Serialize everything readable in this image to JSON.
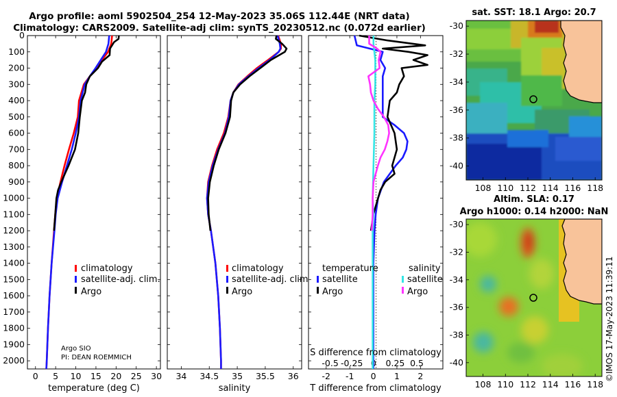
{
  "title_line1": "Argo profile: aoml 5902504_254 12-May-2023 35.06S 112.44E (NRT data)",
  "title_line2": "Climatology: CARS2009. Satellite-adj clim: synTS_20230512.nc (0.072d earlier)",
  "colors": {
    "red": "#ff0000",
    "blue": "#1a1aff",
    "black": "#000000",
    "cyan": "#33e5e5",
    "magenta": "#ff33ff"
  },
  "credits": {
    "line1": "Argo SIO",
    "line2": "PI: DEAN ROEMMICH"
  },
  "stamp": "©IMOS 17-May-2023 11:39:11",
  "depth_ticks": [
    0,
    100,
    200,
    300,
    400,
    500,
    600,
    700,
    800,
    900,
    1000,
    1100,
    1200,
    1300,
    1400,
    1500,
    1600,
    1700,
    1800,
    1900,
    2000
  ],
  "chart_data": [
    {
      "id": "temperature",
      "type": "line",
      "xlabel": "temperature (deg C)",
      "xlim": [
        -2,
        31
      ],
      "ylim": [
        0,
        2050
      ],
      "xticks": [
        0,
        5,
        10,
        15,
        20,
        25,
        30
      ],
      "legend": [
        "climatology",
        "satellite-adj. clim.",
        "Argo"
      ],
      "series": [
        {
          "name": "climatology",
          "color": "red",
          "depth": [
            0,
            50,
            100,
            150,
            200,
            250,
            300,
            400,
            500,
            600,
            700,
            800,
            900,
            1000,
            1100,
            1200,
            1400,
            1600,
            1800,
            2000,
            2050
          ],
          "values": [
            19.0,
            18.8,
            18.0,
            16.5,
            15.0,
            13.5,
            12.0,
            10.8,
            10.5,
            9.5,
            8.3,
            7.2,
            6.2,
            5.3,
            4.9,
            4.6,
            4.0,
            3.5,
            3.1,
            2.8,
            2.7
          ]
        },
        {
          "name": "satellite-adj. clim.",
          "color": "blue",
          "depth": [
            0,
            50,
            100,
            150,
            200,
            250,
            300,
            400,
            500,
            600,
            700,
            800,
            900,
            1000,
            1100,
            1200,
            1400,
            1600,
            1800,
            2000,
            2050
          ],
          "values": [
            18.3,
            18.1,
            17.5,
            16.2,
            14.9,
            13.5,
            12.2,
            11.2,
            10.8,
            10.0,
            9.0,
            7.8,
            6.6,
            5.5,
            5.0,
            4.7,
            4.0,
            3.5,
            3.1,
            2.8,
            2.7
          ]
        },
        {
          "name": "Argo",
          "color": "black",
          "depth": [
            0,
            20,
            40,
            80,
            120,
            160,
            200,
            250,
            300,
            350,
            400,
            500,
            600,
            700,
            800,
            850,
            900,
            950,
            1000,
            1100,
            1200
          ],
          "values": [
            20.7,
            20.6,
            19.5,
            18.5,
            18.4,
            16.5,
            15.5,
            13.5,
            12.6,
            12.3,
            11.5,
            11.0,
            10.6,
            9.8,
            8.2,
            7.3,
            6.4,
            5.6,
            5.2,
            4.9,
            4.6
          ]
        }
      ]
    },
    {
      "id": "salinity",
      "type": "line",
      "xlabel": "salinity",
      "xlim": [
        33.75,
        36.15
      ],
      "ylim": [
        0,
        2050
      ],
      "xticks": [
        34,
        34.5,
        35,
        35.5,
        36
      ],
      "legend": [
        "climatology",
        "satellite-adj. clim.",
        "Argo"
      ],
      "series": [
        {
          "name": "climatology",
          "color": "red",
          "depth": [
            0,
            50,
            80,
            100,
            150,
            200,
            250,
            300,
            350,
            400,
            500,
            600,
            700,
            800,
            900,
            1000,
            1100,
            1200,
            1400,
            1600,
            1800,
            2000,
            2050
          ],
          "values": [
            35.73,
            35.78,
            35.78,
            35.74,
            35.55,
            35.35,
            35.18,
            35.02,
            34.93,
            34.88,
            34.84,
            34.76,
            34.64,
            34.55,
            34.48,
            34.46,
            34.48,
            34.53,
            34.61,
            34.66,
            34.69,
            34.71,
            34.71
          ]
        },
        {
          "name": "satellite-adj. clim.",
          "color": "blue",
          "depth": [
            0,
            50,
            80,
            100,
            150,
            200,
            250,
            300,
            350,
            400,
            500,
            600,
            700,
            800,
            900,
            1000,
            1100,
            1200,
            1400,
            1600,
            1800,
            2000,
            2050
          ],
          "values": [
            35.72,
            35.76,
            35.77,
            35.74,
            35.58,
            35.38,
            35.2,
            35.03,
            34.93,
            34.88,
            34.85,
            34.78,
            34.66,
            34.56,
            34.49,
            34.46,
            34.48,
            34.53,
            34.61,
            34.66,
            34.69,
            34.71,
            34.71
          ]
        },
        {
          "name": "Argo",
          "color": "black",
          "depth": [
            0,
            20,
            50,
            80,
            100,
            150,
            200,
            250,
            300,
            350,
            400,
            500,
            600,
            700,
            800,
            900,
            1000,
            1100,
            1200
          ],
          "values": [
            35.7,
            35.69,
            35.8,
            35.88,
            35.85,
            35.6,
            35.41,
            35.22,
            35.05,
            34.93,
            34.89,
            34.87,
            34.79,
            34.67,
            34.58,
            34.51,
            34.48,
            34.49,
            34.52
          ]
        }
      ]
    },
    {
      "id": "difference",
      "type": "line",
      "xlabel": "T difference from climatology",
      "top_label": "S difference from climatology",
      "xlim": [
        -2.75,
        2.95
      ],
      "ylim": [
        0,
        2050
      ],
      "xticks": [
        -2,
        -1,
        0,
        1,
        2
      ],
      "top_ticks": [
        -0.5,
        -0.25,
        0,
        0.25,
        0.5
      ],
      "legend_temperature_title": "temperature",
      "legend_salinity_title": "salinity",
      "legend_temperature": [
        "satellite",
        "Argo"
      ],
      "legend_salinity": [
        "satellite",
        "Argo"
      ],
      "series": [
        {
          "name": "temperature satellite",
          "color": "blue",
          "depth": [
            0,
            60,
            100,
            150,
            200,
            250,
            300,
            400,
            500,
            550,
            600,
            650,
            700,
            750,
            800,
            900,
            1000,
            1100,
            1200,
            1400,
            1600,
            1800,
            2000,
            2050
          ],
          "values": [
            -0.8,
            -0.7,
            0.4,
            0.3,
            0.5,
            0.4,
            0.4,
            0.4,
            0.4,
            0.9,
            1.3,
            1.45,
            1.4,
            1.25,
            0.95,
            0.45,
            0.2,
            0.1,
            0.05,
            0.0,
            0.0,
            0.0,
            0.0,
            0.0
          ]
        },
        {
          "name": "temperature Argo",
          "color": "black",
          "depth": [
            0,
            30,
            60,
            80,
            100,
            120,
            150,
            180,
            200,
            250,
            300,
            350,
            400,
            500,
            600,
            700,
            800,
            850,
            900,
            950,
            1000,
            1100,
            1200
          ],
          "values": [
            -0.6,
            0.6,
            2.2,
            0.4,
            1.5,
            2.3,
            1.7,
            2.3,
            1.2,
            1.3,
            1.1,
            1.0,
            0.7,
            0.6,
            0.9,
            1.0,
            0.8,
            0.9,
            0.5,
            0.3,
            0.2,
            0.0,
            -0.1
          ]
        },
        {
          "name": "salinity satellite",
          "color": "cyan",
          "depth": [
            0,
            50,
            100,
            150,
            200,
            300,
            400,
            600,
            800,
            1000,
            1100,
            1200,
            1400,
            1600,
            1800,
            2000,
            2050
          ],
          "values": [
            0.0,
            0.0,
            0.01,
            0.02,
            0.02,
            0.02,
            0.01,
            0.01,
            0.0,
            -0.01,
            0.0,
            -0.01,
            -0.01,
            -0.01,
            -0.01,
            -0.01,
            -0.01
          ]
        },
        {
          "name": "salinity Argo",
          "color": "magenta",
          "depth": [
            0,
            50,
            80,
            100,
            150,
            200,
            250,
            300,
            350,
            400,
            450,
            500,
            550,
            600,
            650,
            700,
            750,
            800,
            900,
            1000,
            1100,
            1200
          ],
          "values": [
            -0.05,
            -0.05,
            0.04,
            0.08,
            0.06,
            0.07,
            -0.06,
            -0.04,
            -0.03,
            0.0,
            0.05,
            0.12,
            0.17,
            0.18,
            0.16,
            0.13,
            0.08,
            0.05,
            0.0,
            -0.01,
            -0.01,
            -0.02
          ]
        }
      ]
    },
    {
      "id": "sst_map",
      "type": "heatmap",
      "title": "sat. SST: 18.1 Argo: 20.7",
      "xticks": [
        108,
        110,
        112,
        114,
        116,
        118
      ],
      "yticks": [
        -30,
        -32,
        -34,
        -36,
        -38,
        -40
      ],
      "xlim": [
        106.5,
        118.6
      ],
      "ylim": [
        -41.0,
        -29.6
      ],
      "marker": [
        112.44,
        -35.06
      ]
    },
    {
      "id": "sla_map",
      "type": "heatmap",
      "title_line1": "Altim. SLA: 0.17",
      "title_line2": "Argo h1000: 0.14 h2000: NaN",
      "xticks": [
        108,
        110,
        112,
        114,
        116,
        118
      ],
      "yticks": [
        -30,
        -32,
        -34,
        -36,
        -38,
        -40
      ],
      "xlim": [
        106.5,
        118.6
      ],
      "ylim": [
        -41.0,
        -29.6
      ],
      "marker": [
        112.44,
        -35.06
      ]
    }
  ]
}
